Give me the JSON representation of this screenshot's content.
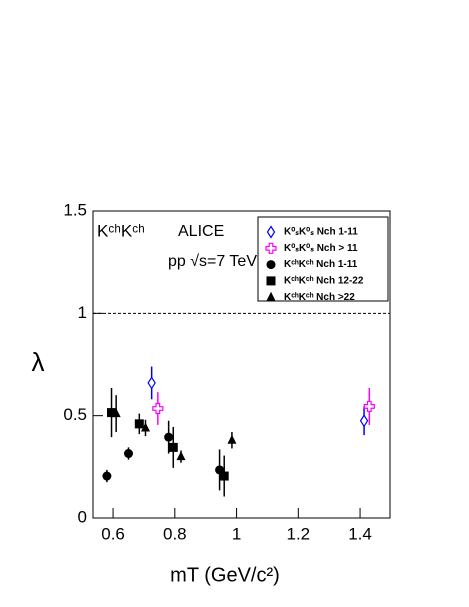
{
  "chart_data": {
    "type": "scatter",
    "annotations": [
      "KᶜʰKᶜʰ",
      "ALICE",
      "pp √s=7 TeV"
    ],
    "x_label": "mT (GeV/c²)",
    "y_label": "λ",
    "xlim": [
      0.535,
      1.497
    ],
    "ylim": [
      0,
      1.5
    ],
    "xticks": [
      0.6,
      0.8,
      1,
      1.2,
      1.4
    ],
    "yticks": [
      0,
      0.5,
      1,
      1.5
    ],
    "hline": 1,
    "series": [
      {
        "name": "K⁰ₛK⁰ₛ Nch 1-11",
        "color": "#0000ff",
        "marker": "diamond-open",
        "x": [
          0.725,
          1.413
        ],
        "values": [
          0.66,
          0.475
        ],
        "errors": [
          0.08,
          0.07
        ]
      },
      {
        "name": "K⁰ₛK⁰ₛ Nch > 11",
        "color": "#ff00ff",
        "marker": "cross-open",
        "x": [
          0.745,
          1.43
        ],
        "values": [
          0.535,
          0.545
        ],
        "errors": [
          0.08,
          0.09
        ]
      },
      {
        "name": "KᶜʰKᶜʰ Nch 1-11",
        "color": "#000000",
        "marker": "circle",
        "x": [
          0.58,
          0.65,
          0.78,
          0.945
        ],
        "values": [
          0.205,
          0.315,
          0.395,
          0.235
        ],
        "errors": [
          0.03,
          0.03,
          0.08,
          0.1
        ]
      },
      {
        "name": "KᶜʰKᶜʰ Nch 12-22",
        "color": "#000000",
        "marker": "square",
        "x": [
          0.595,
          0.685,
          0.795,
          0.96
        ],
        "values": [
          0.515,
          0.46,
          0.345,
          0.205
        ],
        "errors": [
          0.12,
          0.05,
          0.1,
          0.1
        ]
      },
      {
        "name": "KᶜʰKᶜʰ Nch >22",
        "color": "#000000",
        "marker": "triangle",
        "x": [
          0.61,
          0.705,
          0.82,
          0.985
        ],
        "values": [
          0.51,
          0.44,
          0.3,
          0.38
        ],
        "errors": [
          0.09,
          0.04,
          0.03,
          0.04
        ]
      }
    ]
  }
}
